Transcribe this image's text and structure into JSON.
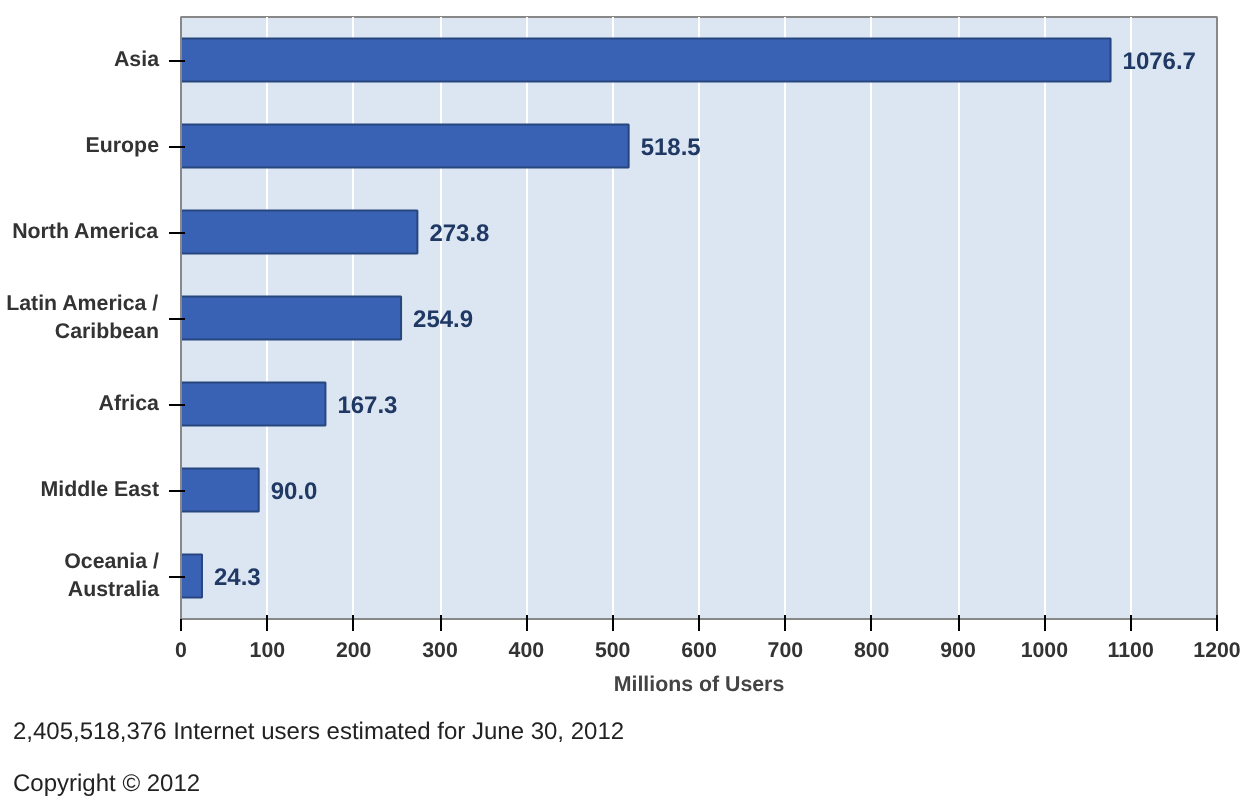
{
  "chart_data": {
    "type": "bar",
    "orientation": "horizontal",
    "categories": [
      "Asia",
      "Europe",
      "North America",
      "Latin America / Caribbean",
      "Africa",
      "Middle East",
      "Oceania / Australia"
    ],
    "values": [
      1076.7,
      518.5,
      273.8,
      254.9,
      167.3,
      90.0,
      24.3
    ],
    "value_labels": [
      "1076.7",
      "518.5",
      "273.8",
      "254.9",
      "167.3",
      "90.0",
      "24.3"
    ],
    "color": "#3a62b4",
    "xlim": [
      0,
      1200
    ],
    "xticks": [
      0,
      100,
      200,
      300,
      400,
      500,
      600,
      700,
      800,
      900,
      1000,
      1100,
      1200
    ],
    "xlabel": "Millions of Users",
    "grid": "x",
    "annotations": [
      "2,405,518,376 Internet users estimated for June 30, 2012",
      "Copyright © 2012"
    ]
  }
}
